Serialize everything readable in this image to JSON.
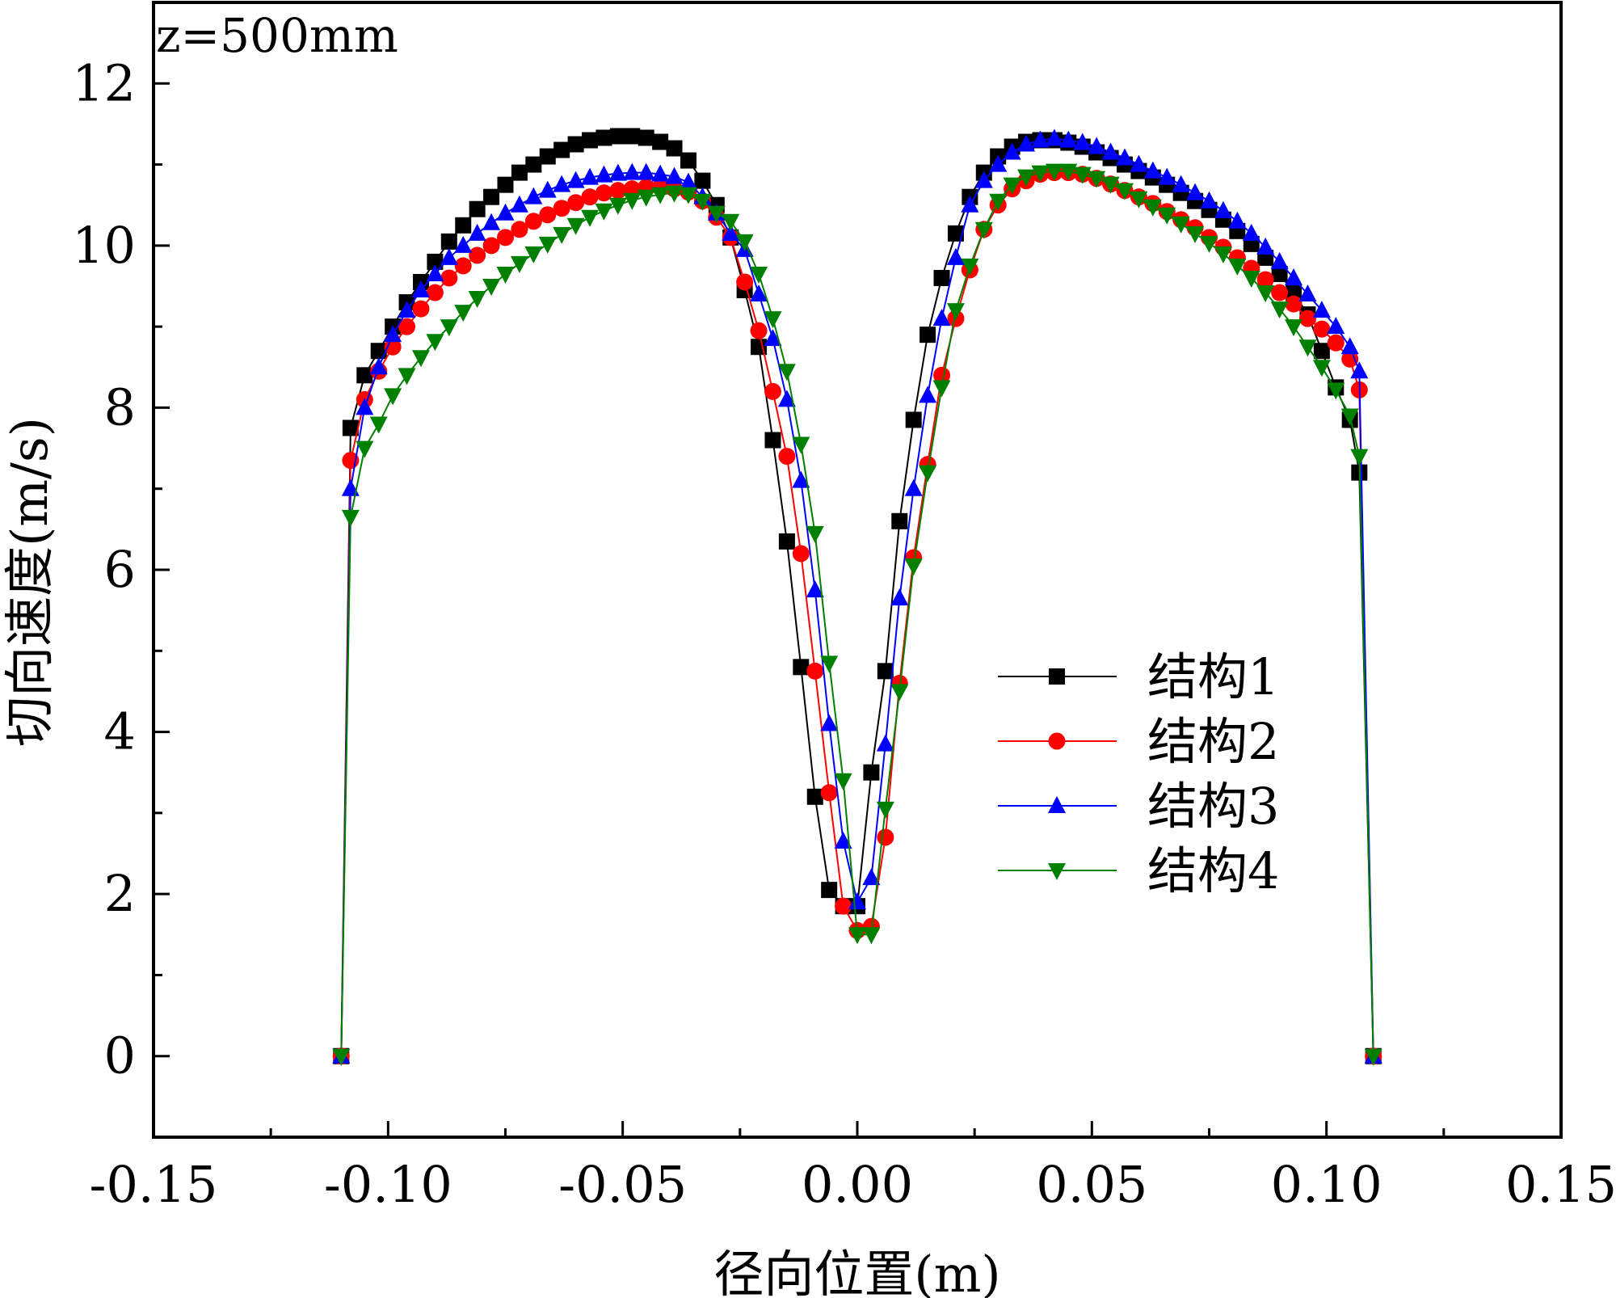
{
  "chart_data": {
    "type": "line",
    "annotation": "z=500mm",
    "xlabel": "径向位置(m)",
    "ylabel": "切向速度(m/s)",
    "xlim": [
      -0.15,
      0.15
    ],
    "ylim": [
      -1,
      13
    ],
    "xticks": [
      -0.15,
      -0.1,
      -0.05,
      0.0,
      0.05,
      0.1,
      0.15
    ],
    "xtick_labels": [
      "-0.15",
      "-0.10",
      "-0.05",
      "0.00",
      "0.05",
      "0.10",
      "0.15"
    ],
    "yticks": [
      0,
      2,
      4,
      6,
      8,
      10,
      12
    ],
    "ytick_labels": [
      "0",
      "2",
      "4",
      "6",
      "8",
      "10",
      "12"
    ],
    "legend_position": "center-right",
    "series": [
      {
        "name": "结构1",
        "color": "#000000",
        "marker": "square",
        "points": [
          [
            -0.11,
            0
          ],
          [
            -0.108,
            7.75
          ],
          [
            -0.105,
            8.4
          ],
          [
            -0.102,
            8.7
          ],
          [
            -0.099,
            9.0
          ],
          [
            -0.096,
            9.3
          ],
          [
            -0.093,
            9.55
          ],
          [
            -0.09,
            9.8
          ],
          [
            -0.087,
            10.05
          ],
          [
            -0.084,
            10.25
          ],
          [
            -0.081,
            10.45
          ],
          [
            -0.078,
            10.6
          ],
          [
            -0.075,
            10.75
          ],
          [
            -0.072,
            10.9
          ],
          [
            -0.069,
            11.0
          ],
          [
            -0.066,
            11.1
          ],
          [
            -0.063,
            11.18
          ],
          [
            -0.06,
            11.25
          ],
          [
            -0.057,
            11.3
          ],
          [
            -0.054,
            11.33
          ],
          [
            -0.051,
            11.35
          ],
          [
            -0.048,
            11.35
          ],
          [
            -0.045,
            11.33
          ],
          [
            -0.042,
            11.28
          ],
          [
            -0.039,
            11.2
          ],
          [
            -0.036,
            11.05
          ],
          [
            -0.033,
            10.8
          ],
          [
            -0.03,
            10.5
          ],
          [
            -0.027,
            10.1
          ],
          [
            -0.024,
            9.45
          ],
          [
            -0.021,
            8.75
          ],
          [
            -0.018,
            7.6
          ],
          [
            -0.015,
            6.35
          ],
          [
            -0.012,
            4.8
          ],
          [
            -0.009,
            3.2
          ],
          [
            -0.006,
            2.05
          ],
          [
            -0.003,
            1.85
          ],
          [
            0.0,
            1.85
          ],
          [
            0.003,
            3.5
          ],
          [
            0.006,
            4.75
          ],
          [
            0.009,
            6.6
          ],
          [
            0.012,
            7.85
          ],
          [
            0.015,
            8.9
          ],
          [
            0.018,
            9.6
          ],
          [
            0.021,
            10.15
          ],
          [
            0.024,
            10.6
          ],
          [
            0.027,
            10.9
          ],
          [
            0.03,
            11.1
          ],
          [
            0.033,
            11.22
          ],
          [
            0.036,
            11.28
          ],
          [
            0.039,
            11.3
          ],
          [
            0.042,
            11.3
          ],
          [
            0.045,
            11.27
          ],
          [
            0.048,
            11.22
          ],
          [
            0.051,
            11.15
          ],
          [
            0.054,
            11.08
          ],
          [
            0.057,
            11.0
          ],
          [
            0.06,
            10.92
          ],
          [
            0.063,
            10.84
          ],
          [
            0.066,
            10.75
          ],
          [
            0.069,
            10.65
          ],
          [
            0.072,
            10.55
          ],
          [
            0.075,
            10.44
          ],
          [
            0.078,
            10.32
          ],
          [
            0.081,
            10.18
          ],
          [
            0.084,
            10.02
          ],
          [
            0.087,
            9.85
          ],
          [
            0.09,
            9.65
          ],
          [
            0.093,
            9.42
          ],
          [
            0.096,
            9.15
          ],
          [
            0.099,
            8.7
          ],
          [
            0.102,
            8.25
          ],
          [
            0.105,
            7.85
          ],
          [
            0.107,
            7.2
          ],
          [
            0.11,
            0
          ]
        ]
      },
      {
        "name": "结构2",
        "color": "#ff0000",
        "marker": "circle",
        "points": [
          [
            -0.11,
            0
          ],
          [
            -0.108,
            7.35
          ],
          [
            -0.105,
            8.1
          ],
          [
            -0.102,
            8.45
          ],
          [
            -0.099,
            8.75
          ],
          [
            -0.096,
            9.0
          ],
          [
            -0.093,
            9.22
          ],
          [
            -0.09,
            9.42
          ],
          [
            -0.087,
            9.6
          ],
          [
            -0.084,
            9.75
          ],
          [
            -0.081,
            9.88
          ],
          [
            -0.078,
            10.0
          ],
          [
            -0.075,
            10.1
          ],
          [
            -0.072,
            10.2
          ],
          [
            -0.069,
            10.3
          ],
          [
            -0.066,
            10.38
          ],
          [
            -0.063,
            10.46
          ],
          [
            -0.06,
            10.53
          ],
          [
            -0.057,
            10.6
          ],
          [
            -0.054,
            10.65
          ],
          [
            -0.051,
            10.68
          ],
          [
            -0.048,
            10.7
          ],
          [
            -0.045,
            10.72
          ],
          [
            -0.042,
            10.72
          ],
          [
            -0.039,
            10.7
          ],
          [
            -0.036,
            10.66
          ],
          [
            -0.033,
            10.55
          ],
          [
            -0.03,
            10.35
          ],
          [
            -0.027,
            10.1
          ],
          [
            -0.024,
            9.55
          ],
          [
            -0.021,
            8.95
          ],
          [
            -0.018,
            8.2
          ],
          [
            -0.015,
            7.4
          ],
          [
            -0.012,
            6.2
          ],
          [
            -0.009,
            4.75
          ],
          [
            -0.006,
            3.25
          ],
          [
            -0.003,
            1.85
          ],
          [
            0.0,
            1.55
          ],
          [
            0.003,
            1.6
          ],
          [
            0.006,
            2.7
          ],
          [
            0.009,
            4.6
          ],
          [
            0.012,
            6.15
          ],
          [
            0.015,
            7.3
          ],
          [
            0.018,
            8.4
          ],
          [
            0.021,
            9.1
          ],
          [
            0.024,
            9.7
          ],
          [
            0.027,
            10.2
          ],
          [
            0.03,
            10.5
          ],
          [
            0.033,
            10.7
          ],
          [
            0.036,
            10.8
          ],
          [
            0.039,
            10.88
          ],
          [
            0.042,
            10.9
          ],
          [
            0.045,
            10.9
          ],
          [
            0.048,
            10.88
          ],
          [
            0.051,
            10.83
          ],
          [
            0.054,
            10.76
          ],
          [
            0.057,
            10.68
          ],
          [
            0.06,
            10.6
          ],
          [
            0.063,
            10.52
          ],
          [
            0.066,
            10.42
          ],
          [
            0.069,
            10.32
          ],
          [
            0.072,
            10.22
          ],
          [
            0.075,
            10.1
          ],
          [
            0.078,
            9.98
          ],
          [
            0.081,
            9.85
          ],
          [
            0.084,
            9.72
          ],
          [
            0.087,
            9.58
          ],
          [
            0.09,
            9.42
          ],
          [
            0.093,
            9.28
          ],
          [
            0.096,
            9.1
          ],
          [
            0.099,
            8.97
          ],
          [
            0.102,
            8.8
          ],
          [
            0.105,
            8.6
          ],
          [
            0.107,
            8.22
          ],
          [
            0.11,
            0
          ]
        ]
      },
      {
        "name": "结构3",
        "color": "#0000ff",
        "marker": "triangle-up",
        "points": [
          [
            -0.11,
            0
          ],
          [
            -0.108,
            7.0
          ],
          [
            -0.105,
            8.0
          ],
          [
            -0.102,
            8.5
          ],
          [
            -0.099,
            8.9
          ],
          [
            -0.096,
            9.2
          ],
          [
            -0.093,
            9.45
          ],
          [
            -0.09,
            9.65
          ],
          [
            -0.087,
            9.85
          ],
          [
            -0.084,
            10.0
          ],
          [
            -0.081,
            10.15
          ],
          [
            -0.078,
            10.28
          ],
          [
            -0.075,
            10.4
          ],
          [
            -0.072,
            10.5
          ],
          [
            -0.069,
            10.6
          ],
          [
            -0.066,
            10.68
          ],
          [
            -0.063,
            10.75
          ],
          [
            -0.06,
            10.8
          ],
          [
            -0.057,
            10.84
          ],
          [
            -0.054,
            10.87
          ],
          [
            -0.051,
            10.89
          ],
          [
            -0.048,
            10.9
          ],
          [
            -0.045,
            10.9
          ],
          [
            -0.042,
            10.88
          ],
          [
            -0.039,
            10.85
          ],
          [
            -0.036,
            10.78
          ],
          [
            -0.033,
            10.6
          ],
          [
            -0.03,
            10.4
          ],
          [
            -0.027,
            10.15
          ],
          [
            -0.024,
            9.95
          ],
          [
            -0.021,
            9.4
          ],
          [
            -0.018,
            8.85
          ],
          [
            -0.015,
            8.1
          ],
          [
            -0.012,
            7.1
          ],
          [
            -0.009,
            5.75
          ],
          [
            -0.006,
            4.1
          ],
          [
            -0.003,
            2.65
          ],
          [
            0.0,
            1.9
          ],
          [
            0.003,
            2.2
          ],
          [
            0.006,
            3.85
          ],
          [
            0.009,
            5.65
          ],
          [
            0.012,
            7.0
          ],
          [
            0.015,
            8.15
          ],
          [
            0.018,
            9.1
          ],
          [
            0.021,
            9.85
          ],
          [
            0.024,
            10.5
          ],
          [
            0.027,
            10.8
          ],
          [
            0.03,
            11.0
          ],
          [
            0.033,
            11.15
          ],
          [
            0.036,
            11.25
          ],
          [
            0.039,
            11.3
          ],
          [
            0.042,
            11.32
          ],
          [
            0.045,
            11.3
          ],
          [
            0.048,
            11.27
          ],
          [
            0.051,
            11.22
          ],
          [
            0.054,
            11.15
          ],
          [
            0.057,
            11.08
          ],
          [
            0.06,
            11.0
          ],
          [
            0.063,
            10.92
          ],
          [
            0.066,
            10.84
          ],
          [
            0.069,
            10.75
          ],
          [
            0.072,
            10.65
          ],
          [
            0.075,
            10.55
          ],
          [
            0.078,
            10.43
          ],
          [
            0.081,
            10.3
          ],
          [
            0.084,
            10.15
          ],
          [
            0.087,
            9.98
          ],
          [
            0.09,
            9.8
          ],
          [
            0.093,
            9.6
          ],
          [
            0.096,
            9.4
          ],
          [
            0.099,
            9.2
          ],
          [
            0.102,
            9.0
          ],
          [
            0.105,
            8.75
          ],
          [
            0.107,
            8.45
          ],
          [
            0.11,
            0
          ]
        ]
      },
      {
        "name": "结构4",
        "color": "#008000",
        "marker": "triangle-down",
        "points": [
          [
            -0.11,
            0
          ],
          [
            -0.108,
            6.65
          ],
          [
            -0.105,
            7.5
          ],
          [
            -0.102,
            7.8
          ],
          [
            -0.099,
            8.15
          ],
          [
            -0.096,
            8.4
          ],
          [
            -0.093,
            8.62
          ],
          [
            -0.09,
            8.82
          ],
          [
            -0.087,
            9.0
          ],
          [
            -0.084,
            9.18
          ],
          [
            -0.081,
            9.35
          ],
          [
            -0.078,
            9.5
          ],
          [
            -0.075,
            9.65
          ],
          [
            -0.072,
            9.78
          ],
          [
            -0.069,
            9.9
          ],
          [
            -0.066,
            10.02
          ],
          [
            -0.063,
            10.14
          ],
          [
            -0.06,
            10.25
          ],
          [
            -0.057,
            10.35
          ],
          [
            -0.054,
            10.43
          ],
          [
            -0.051,
            10.5
          ],
          [
            -0.048,
            10.56
          ],
          [
            -0.045,
            10.6
          ],
          [
            -0.042,
            10.63
          ],
          [
            -0.039,
            10.65
          ],
          [
            -0.036,
            10.63
          ],
          [
            -0.033,
            10.55
          ],
          [
            -0.03,
            10.4
          ],
          [
            -0.027,
            10.3
          ],
          [
            -0.024,
            10.05
          ],
          [
            -0.021,
            9.65
          ],
          [
            -0.018,
            9.1
          ],
          [
            -0.015,
            8.45
          ],
          [
            -0.012,
            7.55
          ],
          [
            -0.009,
            6.45
          ],
          [
            -0.006,
            4.85
          ],
          [
            -0.003,
            3.4
          ],
          [
            0.0,
            1.5
          ],
          [
            0.003,
            1.5
          ],
          [
            0.006,
            3.05
          ],
          [
            0.009,
            4.5
          ],
          [
            0.012,
            6.05
          ],
          [
            0.015,
            7.2
          ],
          [
            0.018,
            8.25
          ],
          [
            0.021,
            9.2
          ],
          [
            0.024,
            9.75
          ],
          [
            0.027,
            10.2
          ],
          [
            0.03,
            10.55
          ],
          [
            0.033,
            10.75
          ],
          [
            0.036,
            10.85
          ],
          [
            0.039,
            10.9
          ],
          [
            0.042,
            10.92
          ],
          [
            0.045,
            10.92
          ],
          [
            0.048,
            10.88
          ],
          [
            0.051,
            10.83
          ],
          [
            0.054,
            10.76
          ],
          [
            0.057,
            10.68
          ],
          [
            0.06,
            10.58
          ],
          [
            0.063,
            10.48
          ],
          [
            0.066,
            10.38
          ],
          [
            0.069,
            10.27
          ],
          [
            0.072,
            10.15
          ],
          [
            0.075,
            10.03
          ],
          [
            0.078,
            9.9
          ],
          [
            0.081,
            9.75
          ],
          [
            0.084,
            9.6
          ],
          [
            0.087,
            9.42
          ],
          [
            0.09,
            9.22
          ],
          [
            0.093,
            9.0
          ],
          [
            0.096,
            8.75
          ],
          [
            0.099,
            8.5
          ],
          [
            0.102,
            8.22
          ],
          [
            0.105,
            7.9
          ],
          [
            0.107,
            7.4
          ],
          [
            0.11,
            0
          ]
        ]
      }
    ]
  }
}
